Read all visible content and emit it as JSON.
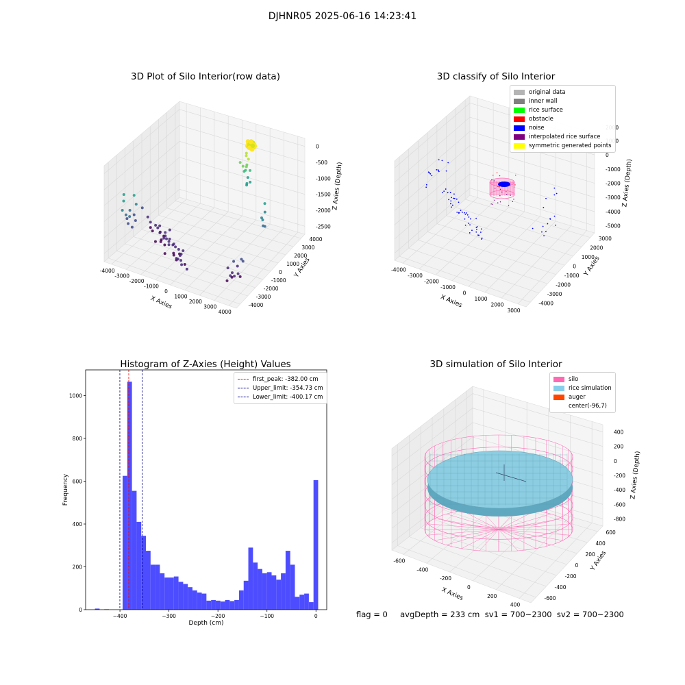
{
  "figure": {
    "title": "DJHNR05 2025-06-16 14:23:41"
  },
  "chart_data": [
    {
      "type": "scatter",
      "panel": "top-left",
      "title": "3D Plot of Silo Interior(row data)",
      "xlabel": "X Axies",
      "ylabel": "Y Axies",
      "zlabel": "Z Axies (Depth)",
      "xticks": [
        "-4000",
        "-3000",
        "-2000",
        "-1000",
        "0",
        "1000",
        "2000",
        "3000",
        "4000"
      ],
      "yticks": [
        "-4000",
        "-3000",
        "-2000",
        "-1000",
        "0",
        "1000",
        "2000",
        "3000",
        "4000"
      ],
      "zticks": [
        "0",
        "-500",
        "-1000",
        "-1500",
        "-2000",
        "-2500"
      ],
      "colormap": "viridis"
    },
    {
      "type": "scatter",
      "panel": "top-right",
      "title": "3D classify of Silo Interior",
      "xlabel": "X Axies",
      "ylabel": "Y Axies",
      "zlabel": "Z Axies (Depth)",
      "xticks": [
        "-4000",
        "-3000",
        "-2000",
        "-1000",
        "0",
        "1000",
        "2000",
        "3000"
      ],
      "yticks": [
        "-4000",
        "-3000",
        "-2000",
        "-1000",
        "0",
        "1000",
        "2000",
        "3000"
      ],
      "zticks": [
        "1000",
        "0",
        "-1000",
        "-2000",
        "-3000",
        "-4000",
        "-5000"
      ],
      "zticks_top": "2000",
      "legend": [
        {
          "label": "original data",
          "color": "#b4b4b4"
        },
        {
          "label": "inner wall",
          "color": "#808080"
        },
        {
          "label": "rice surface",
          "color": "#00ff00"
        },
        {
          "label": "obstacle",
          "color": "#ff0000"
        },
        {
          "label": "noise",
          "color": "#0000ff"
        },
        {
          "label": "interpolated rice surface",
          "color": "#800080"
        },
        {
          "label": "symmetric generated points",
          "color": "#ffff00"
        }
      ]
    },
    {
      "type": "bar",
      "panel": "bottom-left",
      "title": "Histogram of Z-Axies (Height) Values",
      "xlabel": "Depth (cm)",
      "ylabel": "Frequency",
      "xlim": [
        -470,
        22
      ],
      "ylim": [
        0,
        1120
      ],
      "xticks": [
        -400,
        -300,
        -200,
        -100,
        0
      ],
      "yticks": [
        0,
        200,
        400,
        600,
        800,
        1000
      ],
      "bin_width": 9.5,
      "bin_starts": [
        -451,
        -432,
        -394.5,
        -385,
        -375.5,
        -366,
        -356.5,
        -347,
        -337.5,
        -328,
        -318.5,
        -309,
        -299.5,
        -290,
        -280.5,
        -271,
        -261.5,
        -252,
        -242.5,
        -233,
        -223.5,
        -214,
        -204.5,
        -195,
        -185.5,
        -176,
        -166.5,
        -157,
        -147.5,
        -138,
        -128.5,
        -119,
        -109.5,
        -100,
        -90.5,
        -81,
        -71.5,
        -62,
        -52.5,
        -43,
        -33.5,
        -24,
        -14.5,
        -5
      ],
      "values": [
        5,
        2,
        625,
        1065,
        555,
        410,
        345,
        275,
        210,
        210,
        170,
        150,
        150,
        155,
        130,
        120,
        105,
        90,
        80,
        75,
        42,
        45,
        42,
        38,
        45,
        40,
        45,
        90,
        135,
        290,
        220,
        190,
        170,
        175,
        160,
        140,
        170,
        275,
        210,
        60,
        70,
        75,
        35,
        605
      ],
      "bar_color": "#4d4dff",
      "vlines": [
        {
          "label": "first_peak: -382.00 cm",
          "x": -382.0,
          "color": "#ff0000"
        },
        {
          "label": "Upper_limit: -354.73 cm",
          "x": -354.73,
          "color": "#00008b"
        },
        {
          "label": "Lower_limit: -400.17 cm",
          "x": -400.17,
          "color": "#00008b"
        }
      ]
    },
    {
      "type": "scatter",
      "panel": "bottom-right",
      "title": "3D simulation of Silo Interior",
      "xlabel": "X Axies",
      "ylabel": "Y Axies",
      "zlabel": "Z Axies (Depth)",
      "xticks": [
        "-600",
        "-400",
        "-200",
        "0",
        "200",
        "400"
      ],
      "yticks": [
        "-600",
        "-400",
        "-200",
        "0",
        "200",
        "400",
        "600"
      ],
      "zticks": [
        "400",
        "200",
        "0",
        "-200",
        "-400",
        "-600",
        "-800"
      ],
      "legend": [
        {
          "label": "silo",
          "color": "#ff69b4"
        },
        {
          "label": "rice simulation",
          "color": "#87ceeb"
        },
        {
          "label": "auger",
          "color": "#ff4500"
        },
        {
          "label": "center(-96,7)",
          "color": ""
        }
      ]
    }
  ],
  "footer": {
    "text": "flag = 0     avgDepth = 233 cm  sv1 = 700~2300  sv2 = 700~2300"
  }
}
